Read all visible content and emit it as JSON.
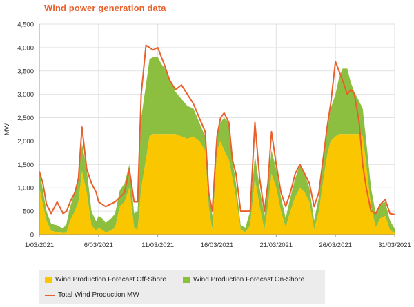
{
  "title": "Wind power generation data",
  "colors": {
    "title": "#e8612c",
    "offshore": "#f9c600",
    "onshore": "#8cbf3f",
    "total": "#e8612c",
    "grid": "#e2e2e2",
    "axis": "#999999",
    "legend_bg": "#ececec"
  },
  "chart_data": {
    "type": "area",
    "title": "Wind power generation data",
    "ylabel": "MW",
    "xlabel": "",
    "ylim": [
      0,
      4500
    ],
    "y_ticks": [
      "0",
      "500",
      "1,000",
      "1,500",
      "2,000",
      "2,500",
      "3,000",
      "3,500",
      "4,000",
      "4,500"
    ],
    "x_ticks": [
      "1/03/2021",
      "6/03/2021",
      "11/03/2021",
      "16/03/2021",
      "21/03/2021",
      "26/03/2021",
      "31/03/2021"
    ],
    "x_tick_days": [
      1,
      6,
      11,
      16,
      21,
      26,
      31
    ],
    "xlim_days": [
      1,
      31
    ],
    "grid": true,
    "legend_position": "bottom",
    "x_days": [
      1,
      1.3,
      1.6,
      2,
      2.5,
      3,
      3.3,
      3.6,
      4,
      4.3,
      4.6,
      5,
      5.4,
      5.8,
      6,
      6.3,
      6.6,
      7,
      7.4,
      7.8,
      8.2,
      8.6,
      9,
      9.3,
      9.6,
      10,
      10.3,
      10.6,
      11,
      11.3,
      11.6,
      12,
      12.5,
      13,
      13.5,
      14,
      14.5,
      15,
      15.3,
      15.6,
      16,
      16.3,
      16.6,
      17,
      17.3,
      17.6,
      18,
      18.4,
      18.8,
      19.2,
      19.6,
      20,
      20.3,
      20.6,
      21,
      21.4,
      21.8,
      22.2,
      22.6,
      23,
      23.4,
      23.8,
      24.2,
      24.6,
      25,
      25.3,
      25.6,
      26,
      26.3,
      26.6,
      27,
      27.3,
      27.6,
      28,
      28.3,
      28.6,
      29,
      29.4,
      29.8,
      30.2,
      30.6,
      31
    ],
    "series": [
      {
        "name": "Wind Production Forecast Off-Shore",
        "values": [
          1000,
          650,
          300,
          80,
          50,
          30,
          40,
          300,
          500,
          700,
          1350,
          900,
          200,
          80,
          150,
          100,
          50,
          80,
          150,
          600,
          700,
          1000,
          150,
          100,
          1000,
          1600,
          2100,
          2150,
          2150,
          2150,
          2150,
          2150,
          2150,
          2100,
          2050,
          2100,
          2000,
          1800,
          600,
          100,
          1800,
          2000,
          1800,
          1600,
          1200,
          800,
          100,
          50,
          200,
          1200,
          600,
          100,
          600,
          1300,
          1000,
          500,
          150,
          500,
          800,
          1000,
          900,
          700,
          100,
          500,
          1200,
          1700,
          2000,
          2100,
          2150,
          2150,
          2150,
          2150,
          2150,
          2150,
          2100,
          1500,
          600,
          150,
          350,
          400,
          100,
          30
        ]
      },
      {
        "name": "Wind Production Forecast On-Shore",
        "values": [
          400,
          300,
          200,
          150,
          150,
          100,
          200,
          300,
          400,
          500,
          600,
          500,
          300,
          200,
          250,
          250,
          200,
          250,
          300,
          350,
          400,
          500,
          300,
          400,
          1500,
          1600,
          1650,
          1650,
          1650,
          1500,
          1400,
          1200,
          900,
          800,
          700,
          600,
          400,
          300,
          300,
          300,
          300,
          400,
          700,
          800,
          400,
          300,
          100,
          100,
          300,
          500,
          400,
          300,
          400,
          500,
          400,
          300,
          200,
          300,
          400,
          500,
          400,
          300,
          200,
          300,
          400,
          500,
          700,
          900,
          1200,
          1400,
          1400,
          1100,
          900,
          700,
          600,
          500,
          400,
          300,
          300,
          300,
          200,
          100
        ]
      },
      {
        "name": "Total Wind Production MW",
        "values": [
          1350,
          1100,
          650,
          450,
          700,
          450,
          500,
          700,
          900,
          1200,
          2300,
          1400,
          1100,
          900,
          700,
          650,
          600,
          650,
          700,
          800,
          900,
          1400,
          700,
          700,
          3000,
          4050,
          4000,
          3950,
          4000,
          3800,
          3600,
          3300,
          3100,
          3200,
          3000,
          2800,
          2500,
          2200,
          900,
          500,
          2100,
          2500,
          2600,
          2400,
          1600,
          1300,
          500,
          500,
          500,
          2400,
          1200,
          500,
          1100,
          2200,
          1500,
          900,
          600,
          900,
          1300,
          1500,
          1300,
          1100,
          600,
          900,
          1700,
          2300,
          2800,
          3700,
          3500,
          3300,
          3000,
          3100,
          3000,
          2400,
          1500,
          1000,
          500,
          450,
          650,
          750,
          450,
          430
        ]
      }
    ]
  },
  "legend": {
    "offshore_label": "Wind Production Forecast Off-Shore",
    "onshore_label": "Wind Production Forecast On-Shore",
    "total_label": "Total Wind Production MW"
  }
}
